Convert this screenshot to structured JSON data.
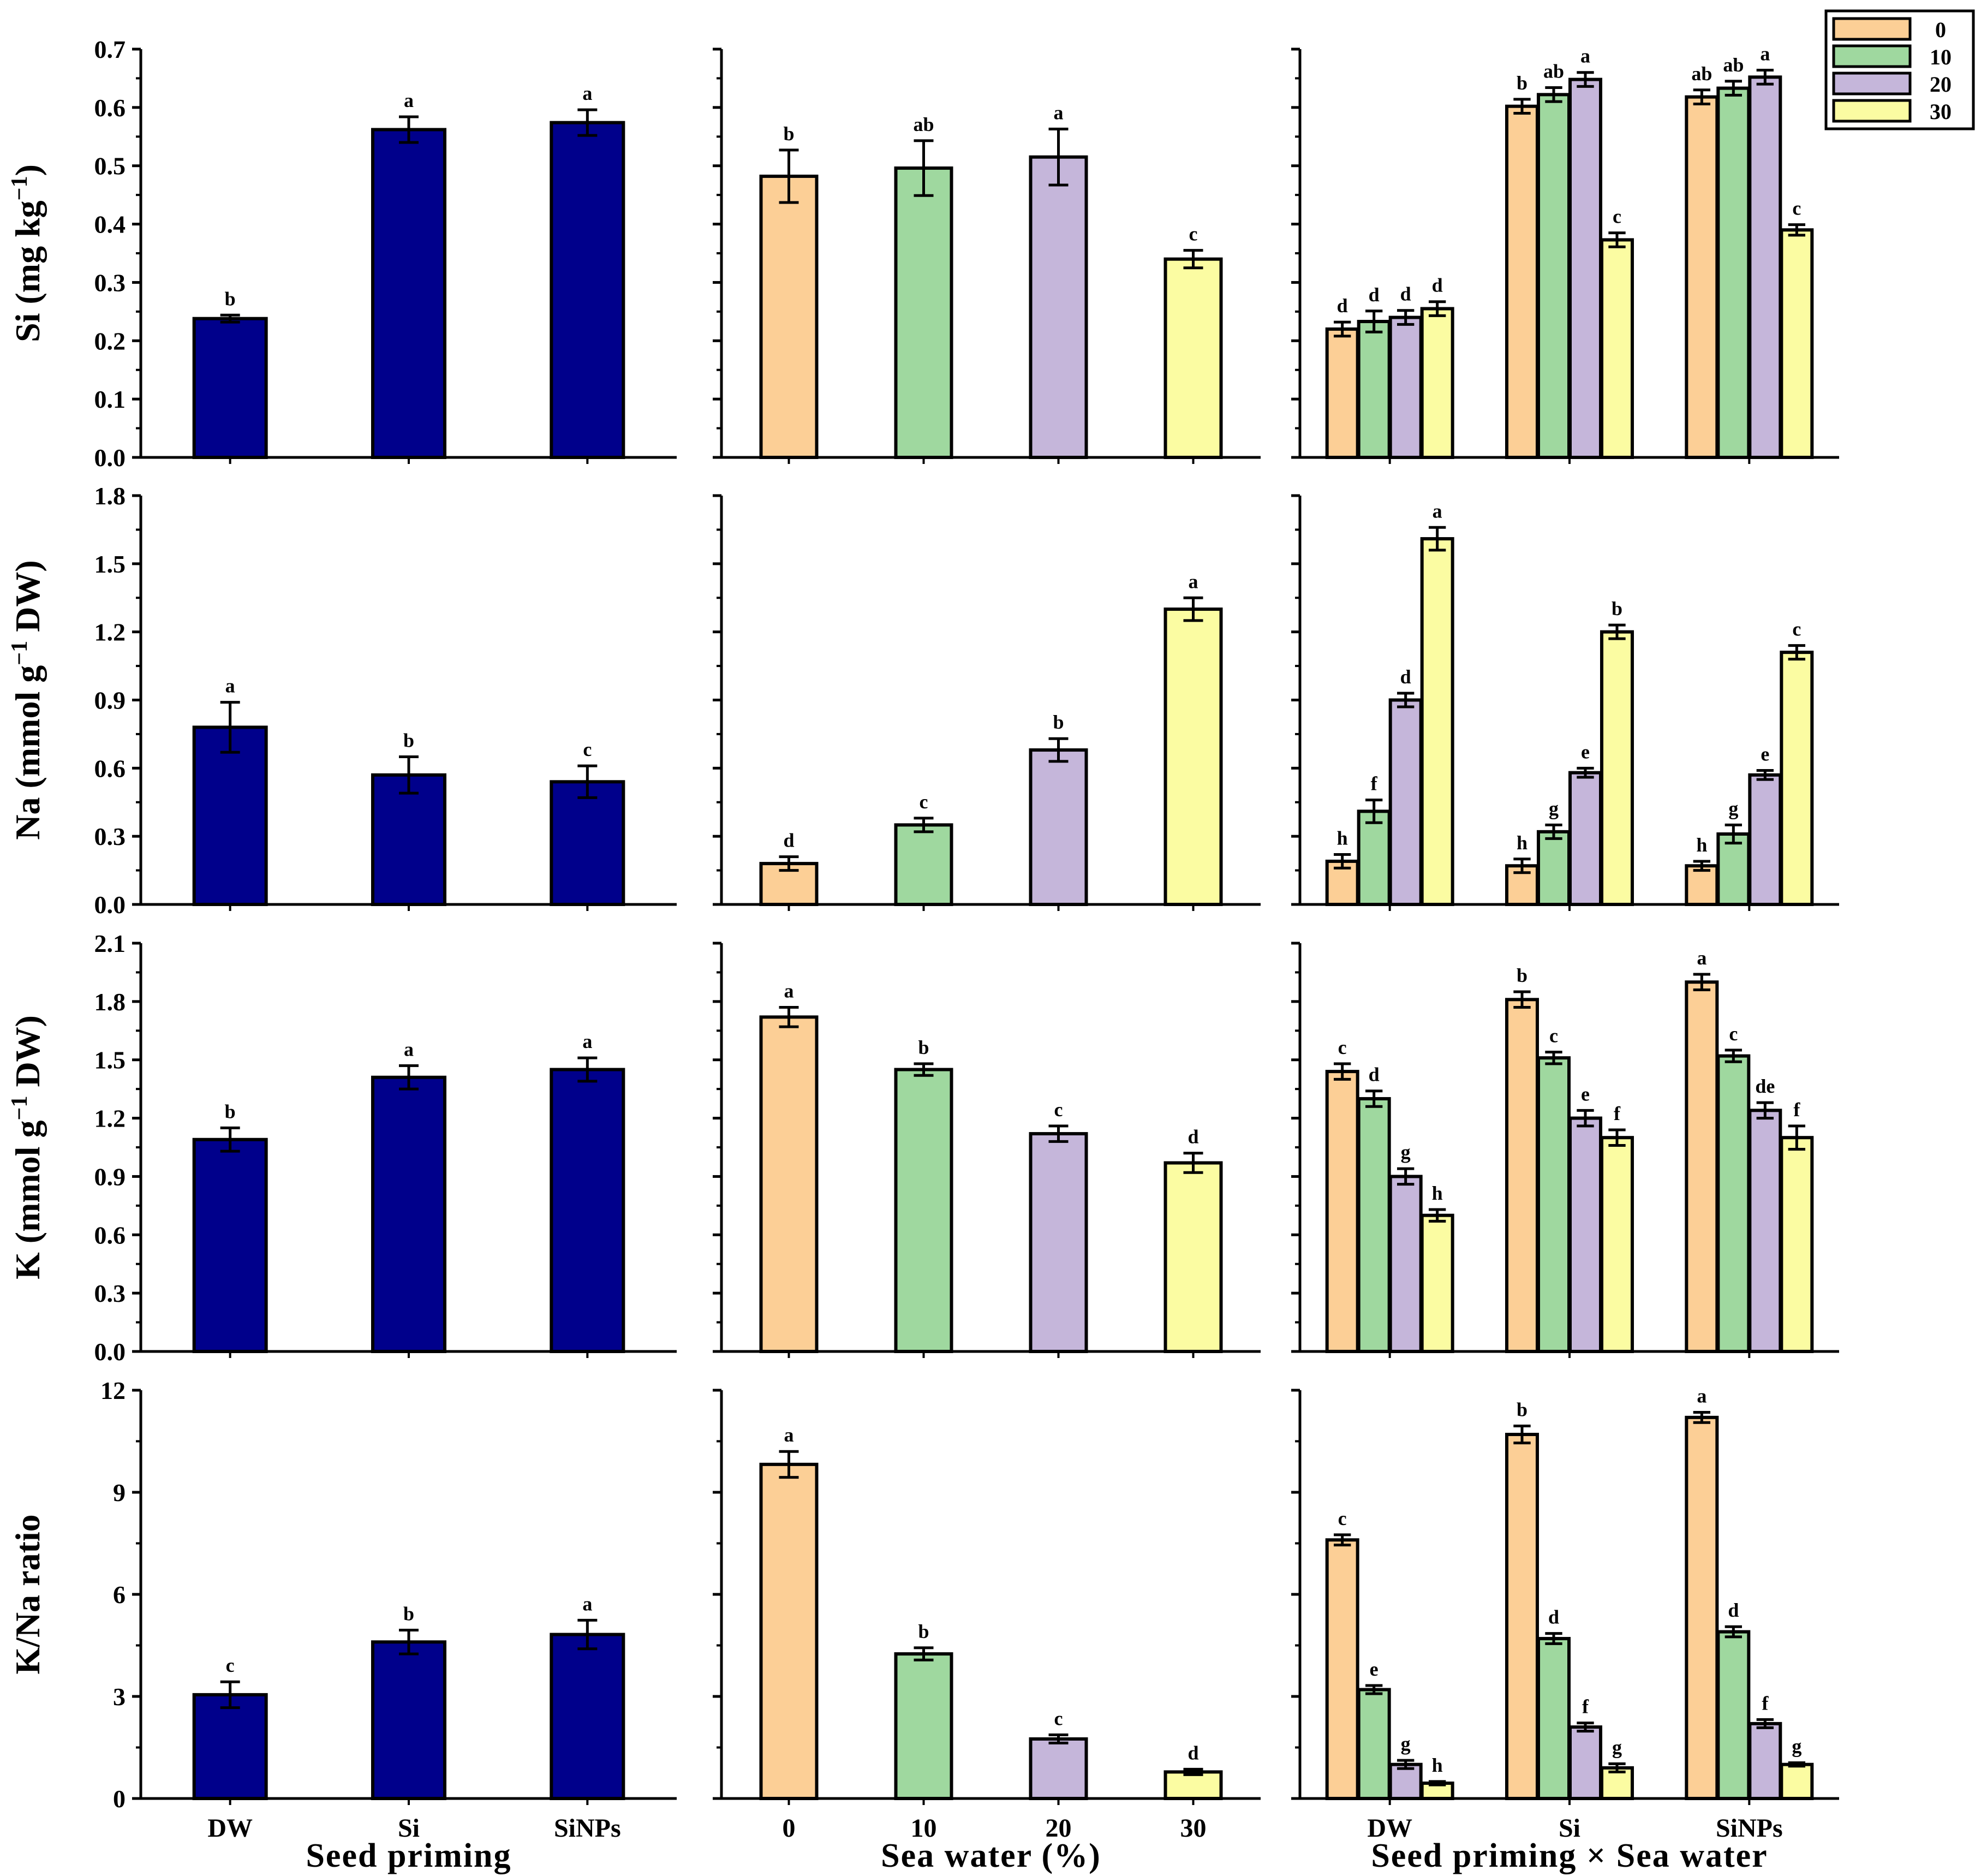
{
  "colors": {
    "dark_blue": "#00008b",
    "sw0": "#fccf96",
    "sw10": "#9fd89f",
    "sw20": "#c5b6da",
    "sw30": "#fbfca2",
    "ink": "#000000"
  },
  "legend": {
    "position": "top-right",
    "entries": [
      {
        "label": "0",
        "color_key": "sw0"
      },
      {
        "label": "10",
        "color_key": "sw10"
      },
      {
        "label": "20",
        "color_key": "sw20"
      },
      {
        "label": "30",
        "color_key": "sw30"
      }
    ]
  },
  "columns": [
    {
      "id": "priming",
      "xlabel": "Seed priming",
      "categories": [
        "DW",
        "Si",
        "SiNPs"
      ]
    },
    {
      "id": "seawater",
      "xlabel": "Sea water (%)",
      "categories": [
        "0",
        "10",
        "20",
        "30"
      ]
    },
    {
      "id": "interaction",
      "xlabel": "Seed priming × Sea water",
      "categories": [
        "DW",
        "Si",
        "SiNPs"
      ]
    }
  ],
  "chart_data": [
    {
      "type": "bar",
      "row": 0,
      "column": "priming",
      "title": "",
      "xlabel": "",
      "ylabel": "Si (mg kg⁻¹)",
      "ylim": [
        0,
        0.7
      ],
      "yticks": [
        "0.0",
        "0.1",
        "0.2",
        "0.3",
        "0.4",
        "0.5",
        "0.6",
        "0.7"
      ],
      "categories": [
        "DW",
        "Si",
        "SiNPs"
      ],
      "series": [
        {
          "name": "Seed priming",
          "color_key": "dark_blue",
          "values": [
            0.238,
            0.562,
            0.574
          ],
          "errors": [
            0.006,
            0.022,
            0.022
          ],
          "letters": [
            "b",
            "a",
            "a"
          ]
        }
      ]
    },
    {
      "type": "bar",
      "row": 0,
      "column": "seawater",
      "title": "",
      "xlabel": "",
      "ylabel": "",
      "ylim": [
        0,
        0.7
      ],
      "yticks": [],
      "categories": [
        "0",
        "10",
        "20",
        "30"
      ],
      "series": [
        {
          "name": "Sea water",
          "per_bar_colors": [
            "sw0",
            "sw10",
            "sw20",
            "sw30"
          ],
          "values": [
            0.482,
            0.496,
            0.515,
            0.34
          ],
          "errors": [
            0.045,
            0.047,
            0.048,
            0.015
          ],
          "letters": [
            "b",
            "ab",
            "a",
            "c"
          ]
        }
      ]
    },
    {
      "type": "bar",
      "row": 0,
      "column": "interaction",
      "title": "",
      "xlabel": "",
      "ylabel": "",
      "ylim": [
        0,
        0.7
      ],
      "yticks": [],
      "categories": [
        "DW",
        "Si",
        "SiNPs"
      ],
      "series": [
        {
          "name": "0",
          "color_key": "sw0",
          "values": [
            0.22,
            0.602,
            0.618
          ],
          "errors": [
            0.012,
            0.012,
            0.012
          ],
          "letters": [
            "d",
            "b",
            "ab"
          ]
        },
        {
          "name": "10",
          "color_key": "sw10",
          "values": [
            0.233,
            0.622,
            0.633
          ],
          "errors": [
            0.018,
            0.012,
            0.012
          ],
          "letters": [
            "d",
            "ab",
            "ab"
          ]
        },
        {
          "name": "20",
          "color_key": "sw20",
          "values": [
            0.24,
            0.648,
            0.652
          ],
          "errors": [
            0.012,
            0.012,
            0.012
          ],
          "letters": [
            "d",
            "a",
            "a"
          ]
        },
        {
          "name": "30",
          "color_key": "sw30",
          "values": [
            0.255,
            0.373,
            0.39
          ],
          "errors": [
            0.012,
            0.012,
            0.009
          ],
          "letters": [
            "d",
            "c",
            "c"
          ]
        }
      ]
    },
    {
      "type": "bar",
      "row": 1,
      "column": "priming",
      "title": "",
      "xlabel": "",
      "ylabel": "Na (mmol g⁻¹ DW)",
      "ylim": [
        0,
        1.8
      ],
      "yticks": [
        "0.0",
        "0.3",
        "0.6",
        "0.9",
        "1.2",
        "1.5",
        "1.8"
      ],
      "categories": [
        "DW",
        "Si",
        "SiNPs"
      ],
      "series": [
        {
          "name": "Seed priming",
          "color_key": "dark_blue",
          "values": [
            0.78,
            0.57,
            0.54
          ],
          "errors": [
            0.11,
            0.08,
            0.07
          ],
          "letters": [
            "a",
            "b",
            "c"
          ]
        }
      ]
    },
    {
      "type": "bar",
      "row": 1,
      "column": "seawater",
      "title": "",
      "xlabel": "",
      "ylabel": "",
      "ylim": [
        0,
        1.8
      ],
      "yticks": [],
      "categories": [
        "0",
        "10",
        "20",
        "30"
      ],
      "series": [
        {
          "name": "Sea water",
          "per_bar_colors": [
            "sw0",
            "sw10",
            "sw20",
            "sw30"
          ],
          "values": [
            0.18,
            0.35,
            0.68,
            1.3
          ],
          "errors": [
            0.03,
            0.03,
            0.05,
            0.05
          ],
          "letters": [
            "d",
            "c",
            "b",
            "a"
          ]
        }
      ]
    },
    {
      "type": "bar",
      "row": 1,
      "column": "interaction",
      "title": "",
      "xlabel": "",
      "ylabel": "",
      "ylim": [
        0,
        1.8
      ],
      "yticks": [],
      "categories": [
        "DW",
        "Si",
        "SiNPs"
      ],
      "series": [
        {
          "name": "0",
          "color_key": "sw0",
          "values": [
            0.19,
            0.17,
            0.17
          ],
          "errors": [
            0.03,
            0.03,
            0.02
          ],
          "letters": [
            "h",
            "h",
            "h"
          ]
        },
        {
          "name": "10",
          "color_key": "sw10",
          "values": [
            0.41,
            0.32,
            0.31
          ],
          "errors": [
            0.05,
            0.03,
            0.04
          ],
          "letters": [
            "f",
            "g",
            "g"
          ]
        },
        {
          "name": "20",
          "color_key": "sw20",
          "values": [
            0.9,
            0.58,
            0.57
          ],
          "errors": [
            0.03,
            0.02,
            0.02
          ],
          "letters": [
            "d",
            "e",
            "e"
          ]
        },
        {
          "name": "30",
          "color_key": "sw30",
          "values": [
            1.61,
            1.2,
            1.11
          ],
          "errors": [
            0.05,
            0.03,
            0.03
          ],
          "letters": [
            "a",
            "b",
            "c"
          ]
        }
      ]
    },
    {
      "type": "bar",
      "row": 2,
      "column": "priming",
      "title": "",
      "xlabel": "",
      "ylabel": "K (mmol g⁻¹ DW)",
      "ylim": [
        0,
        2.1
      ],
      "yticks": [
        "0.0",
        "0.3",
        "0.6",
        "0.9",
        "1.2",
        "1.5",
        "1.8",
        "2.1"
      ],
      "categories": [
        "DW",
        "Si",
        "SiNPs"
      ],
      "series": [
        {
          "name": "Seed priming",
          "color_key": "dark_blue",
          "values": [
            1.09,
            1.41,
            1.45
          ],
          "errors": [
            0.06,
            0.06,
            0.06
          ],
          "letters": [
            "b",
            "a",
            "a"
          ]
        }
      ]
    },
    {
      "type": "bar",
      "row": 2,
      "column": "seawater",
      "title": "",
      "xlabel": "",
      "ylabel": "",
      "ylim": [
        0,
        2.1
      ],
      "yticks": [],
      "categories": [
        "0",
        "10",
        "20",
        "30"
      ],
      "series": [
        {
          "name": "Sea water",
          "per_bar_colors": [
            "sw0",
            "sw10",
            "sw20",
            "sw30"
          ],
          "values": [
            1.72,
            1.45,
            1.12,
            0.97
          ],
          "errors": [
            0.05,
            0.03,
            0.04,
            0.05
          ],
          "letters": [
            "a",
            "b",
            "c",
            "d"
          ]
        }
      ]
    },
    {
      "type": "bar",
      "row": 2,
      "column": "interaction",
      "title": "",
      "xlabel": "",
      "ylabel": "",
      "ylim": [
        0,
        2.1
      ],
      "yticks": [],
      "categories": [
        "DW",
        "Si",
        "SiNPs"
      ],
      "series": [
        {
          "name": "0",
          "color_key": "sw0",
          "values": [
            1.44,
            1.81,
            1.9
          ],
          "errors": [
            0.04,
            0.04,
            0.04
          ],
          "letters": [
            "c",
            "b",
            "a"
          ]
        },
        {
          "name": "10",
          "color_key": "sw10",
          "values": [
            1.3,
            1.51,
            1.52
          ],
          "errors": [
            0.04,
            0.03,
            0.03
          ],
          "letters": [
            "d",
            "c",
            "c"
          ]
        },
        {
          "name": "20",
          "color_key": "sw20",
          "values": [
            0.9,
            1.2,
            1.24
          ],
          "errors": [
            0.04,
            0.04,
            0.04
          ],
          "letters": [
            "g",
            "e",
            "de"
          ]
        },
        {
          "name": "30",
          "color_key": "sw30",
          "values": [
            0.7,
            1.1,
            1.1
          ],
          "errors": [
            0.03,
            0.04,
            0.06
          ],
          "letters": [
            "h",
            "f",
            "f"
          ]
        }
      ]
    },
    {
      "type": "bar",
      "row": 3,
      "column": "priming",
      "title": "",
      "xlabel": "",
      "ylabel": "K/Na ratio",
      "ylim": [
        0,
        12
      ],
      "yticks": [
        "0",
        "3",
        "6",
        "9",
        "12"
      ],
      "categories": [
        "DW",
        "Si",
        "SiNPs"
      ],
      "series": [
        {
          "name": "Seed priming",
          "color_key": "dark_blue",
          "values": [
            3.05,
            4.6,
            4.82
          ],
          "errors": [
            0.38,
            0.35,
            0.42
          ],
          "letters": [
            "c",
            "b",
            "a"
          ]
        }
      ]
    },
    {
      "type": "bar",
      "row": 3,
      "column": "seawater",
      "title": "",
      "xlabel": "",
      "ylabel": "",
      "ylim": [
        0,
        12
      ],
      "yticks": [],
      "categories": [
        "0",
        "10",
        "20",
        "30"
      ],
      "series": [
        {
          "name": "Sea water",
          "per_bar_colors": [
            "sw0",
            "sw10",
            "sw20",
            "sw30"
          ],
          "values": [
            9.82,
            4.25,
            1.75,
            0.78
          ],
          "errors": [
            0.38,
            0.18,
            0.12,
            0.08
          ],
          "letters": [
            "a",
            "b",
            "c",
            "d"
          ]
        }
      ]
    },
    {
      "type": "bar",
      "row": 3,
      "column": "interaction",
      "title": "",
      "xlabel": "",
      "ylabel": "",
      "ylim": [
        0,
        12
      ],
      "yticks": [],
      "categories": [
        "DW",
        "Si",
        "SiNPs"
      ],
      "series": [
        {
          "name": "0",
          "color_key": "sw0",
          "values": [
            7.6,
            10.7,
            11.2
          ],
          "errors": [
            0.15,
            0.25,
            0.15
          ],
          "letters": [
            "c",
            "b",
            "a"
          ]
        },
        {
          "name": "10",
          "color_key": "sw10",
          "values": [
            3.2,
            4.7,
            4.9
          ],
          "errors": [
            0.12,
            0.15,
            0.15
          ],
          "letters": [
            "e",
            "d",
            "d"
          ]
        },
        {
          "name": "20",
          "color_key": "sw20",
          "values": [
            1.0,
            2.1,
            2.2
          ],
          "errors": [
            0.12,
            0.12,
            0.12
          ],
          "letters": [
            "g",
            "f",
            "f"
          ]
        },
        {
          "name": "30",
          "color_key": "sw30",
          "values": [
            0.45,
            0.9,
            1.0
          ],
          "errors": [
            0.05,
            0.12,
            0.05
          ],
          "letters": [
            "h",
            "g",
            "g"
          ]
        }
      ]
    }
  ]
}
